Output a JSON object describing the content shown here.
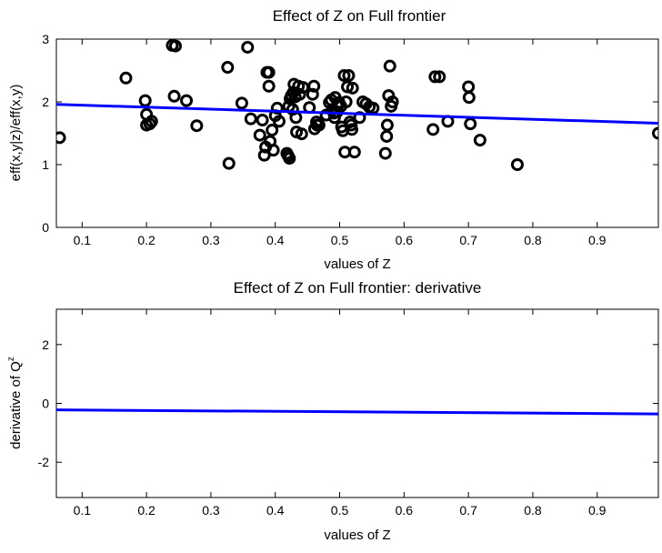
{
  "chart_data": [
    {
      "type": "scatter",
      "title": "Effect of Z on Full frontier",
      "xlabel": "values of Z",
      "ylabel": "eff(x,y|z)/eff(x,y)",
      "xlim": [
        0.06,
        0.995
      ],
      "ylim": [
        0,
        3
      ],
      "xticks": [
        "0.1",
        "0.2",
        "0.3",
        "0.4",
        "0.5",
        "0.6",
        "0.7",
        "0.8",
        "0.9"
      ],
      "yticks": [
        "0",
        "1",
        "2",
        "3"
      ],
      "grid": false,
      "colors": {
        "points": "#000000",
        "line": "#0000ff"
      },
      "series": [
        {
          "kind": "points",
          "points": [
            [
              0.065,
              1.43
            ],
            [
              0.168,
              2.38
            ],
            [
              0.198,
              2.02
            ],
            [
              0.2,
              1.8
            ],
            [
              0.2,
              1.63
            ],
            [
              0.205,
              1.65
            ],
            [
              0.208,
              1.69
            ],
            [
              0.24,
              2.9
            ],
            [
              0.245,
              2.89
            ],
            [
              0.243,
              2.09
            ],
            [
              0.262,
              2.02
            ],
            [
              0.278,
              1.62
            ],
            [
              0.326,
              2.55
            ],
            [
              0.328,
              1.02
            ],
            [
              0.348,
              1.98
            ],
            [
              0.357,
              2.87
            ],
            [
              0.362,
              1.73
            ],
            [
              0.376,
              1.47
            ],
            [
              0.38,
              1.71
            ],
            [
              0.383,
              1.15
            ],
            [
              0.385,
              1.28
            ],
            [
              0.387,
              2.47
            ],
            [
              0.39,
              2.47
            ],
            [
              0.39,
              2.25
            ],
            [
              0.392,
              1.37
            ],
            [
              0.395,
              1.55
            ],
            [
              0.397,
              1.23
            ],
            [
              0.4,
              1.78
            ],
            [
              0.403,
              1.9
            ],
            [
              0.406,
              1.69
            ],
            [
              0.418,
              1.18
            ],
            [
              0.42,
              1.14
            ],
            [
              0.422,
              1.1
            ],
            [
              0.421,
              1.93
            ],
            [
              0.423,
              2.05
            ],
            [
              0.425,
              2.1
            ],
            [
              0.427,
              1.88
            ],
            [
              0.428,
              2.15
            ],
            [
              0.429,
              2.28
            ],
            [
              0.431,
              2.08
            ],
            [
              0.432,
              1.75
            ],
            [
              0.433,
              1.52
            ],
            [
              0.436,
              2.25
            ],
            [
              0.438,
              2.12
            ],
            [
              0.441,
              1.49
            ],
            [
              0.443,
              2.23
            ],
            [
              0.453,
              1.91
            ],
            [
              0.458,
              2.12
            ],
            [
              0.46,
              2.25
            ],
            [
              0.461,
              1.57
            ],
            [
              0.464,
              1.68
            ],
            [
              0.465,
              1.63
            ],
            [
              0.468,
              1.63
            ],
            [
              0.479,
              1.79
            ],
            [
              0.484,
              1.99
            ],
            [
              0.487,
              2.03
            ],
            [
              0.489,
              1.88
            ],
            [
              0.491,
              1.82
            ],
            [
              0.492,
              1.75
            ],
            [
              0.493,
              2.07
            ],
            [
              0.496,
              1.84
            ],
            [
              0.497,
              1.94
            ],
            [
              0.499,
              1.99
            ],
            [
              0.502,
              1.93
            ],
            [
              0.503,
              1.6
            ],
            [
              0.505,
              1.54
            ],
            [
              0.507,
              2.42
            ],
            [
              0.508,
              1.2
            ],
            [
              0.51,
              2.0
            ],
            [
              0.512,
              2.24
            ],
            [
              0.514,
              2.42
            ],
            [
              0.516,
              1.68
            ],
            [
              0.518,
              1.63
            ],
            [
              0.519,
              1.56
            ],
            [
              0.52,
              2.22
            ],
            [
              0.523,
              1.2
            ],
            [
              0.531,
              1.75
            ],
            [
              0.536,
              2.0
            ],
            [
              0.541,
              1.97
            ],
            [
              0.546,
              1.92
            ],
            [
              0.552,
              1.9
            ],
            [
              0.571,
              1.18
            ],
            [
              0.573,
              1.45
            ],
            [
              0.574,
              1.63
            ],
            [
              0.576,
              2.1
            ],
            [
              0.578,
              2.57
            ],
            [
              0.58,
              1.93
            ],
            [
              0.582,
              2.0
            ],
            [
              0.645,
              1.56
            ],
            [
              0.648,
              2.4
            ],
            [
              0.655,
              2.4
            ],
            [
              0.668,
              1.69
            ],
            [
              0.7,
              2.24
            ],
            [
              0.701,
              2.07
            ],
            [
              0.703,
              1.65
            ],
            [
              0.718,
              1.39
            ],
            [
              0.776,
              1.0
            ],
            [
              0.995,
              1.5
            ]
          ]
        },
        {
          "kind": "line",
          "points": [
            [
              0.06,
              1.96
            ],
            [
              0.995,
              1.66
            ]
          ]
        }
      ]
    },
    {
      "type": "line",
      "title": "Effect of Z on Full frontier: derivative",
      "xlabel": "values of Z",
      "ylabel": "derivative of Q",
      "ylabel_superscript": "z",
      "xlim": [
        0.06,
        0.995
      ],
      "ylim": [
        -3.2,
        3.2
      ],
      "xticks": [
        "0.1",
        "0.2",
        "0.3",
        "0.4",
        "0.5",
        "0.6",
        "0.7",
        "0.8",
        "0.9"
      ],
      "yticks": [
        "-2",
        "0",
        "2"
      ],
      "grid": false,
      "colors": {
        "line": "#0000ff"
      },
      "series": [
        {
          "kind": "line",
          "points": [
            [
              0.06,
              -0.22
            ],
            [
              0.995,
              -0.36
            ]
          ]
        }
      ]
    }
  ]
}
